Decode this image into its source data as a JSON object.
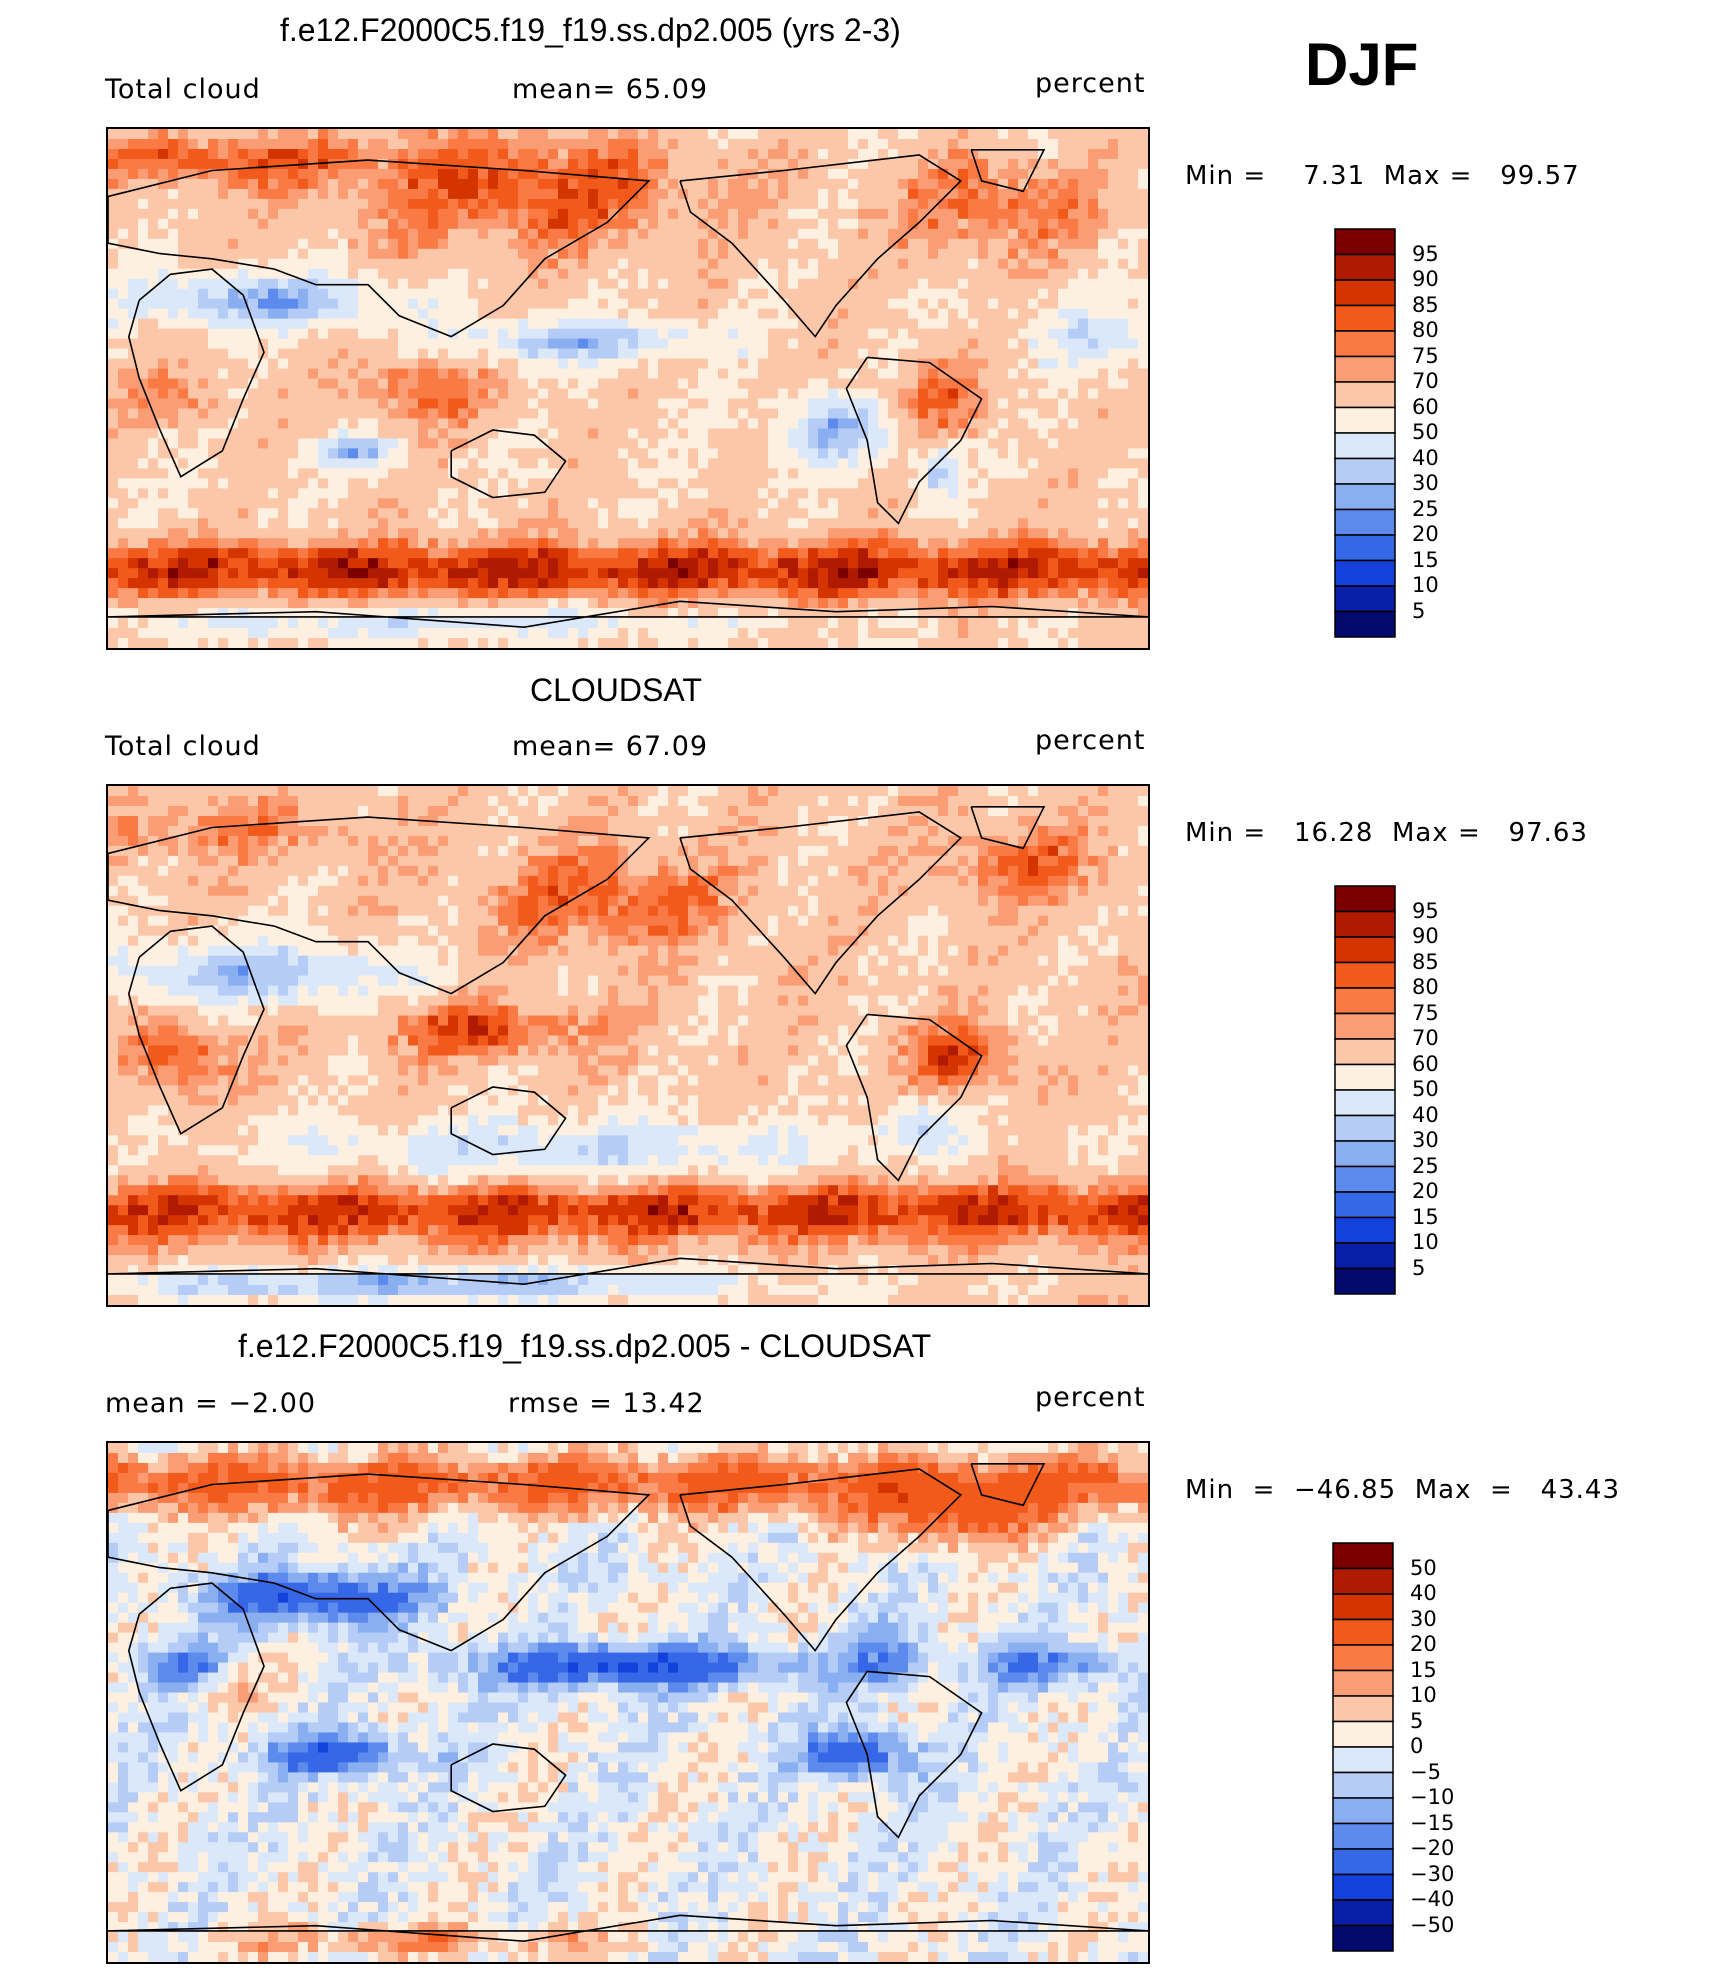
{
  "season": "DJF",
  "panels": [
    {
      "title": "f.e12.F2000C5.f19_f19.ss.dp2.005 (yrs 2-3)",
      "left_label": "Total cloud",
      "mid_label": "mean=   65.09",
      "right_label": "percent",
      "minmax": "Min =    7.31  Max =   99.57",
      "colorbar_levels": [
        "95",
        "90",
        "85",
        "80",
        "75",
        "70",
        "60",
        "50",
        "40",
        "30",
        "25",
        "20",
        "15",
        "10",
        "5"
      ],
      "mean": 65.09,
      "min": 7.31,
      "max": 99.57
    },
    {
      "title": "CLOUDSAT",
      "left_label": "Total cloud",
      "mid_label": "mean=   67.09",
      "right_label": "percent",
      "minmax": "Min =   16.28  Max =   97.63",
      "colorbar_levels": [
        "95",
        "90",
        "85",
        "80",
        "75",
        "70",
        "60",
        "50",
        "40",
        "30",
        "25",
        "20",
        "15",
        "10",
        "5"
      ],
      "mean": 67.09,
      "min": 16.28,
      "max": 97.63
    },
    {
      "title": "f.e12.F2000C5.f19_f19.ss.dp2.005 - CLOUDSAT",
      "left_label": "mean  =   −2.00",
      "mid_label": "rmse  =   13.42",
      "right_label": "percent",
      "minmax": "Min  =  −46.85  Max  =   43.43",
      "colorbar_levels": [
        "50",
        "40",
        "30",
        "20",
        "15",
        "10",
        "5",
        "0",
        "−5",
        "−10",
        "−15",
        "−20",
        "−30",
        "−40",
        "−50"
      ],
      "mean": -2.0,
      "rmse": 13.42,
      "min": -46.85,
      "max": 43.43
    }
  ],
  "chart_data": [
    {
      "type": "heatmap",
      "title": "f.e12.F2000C5.f19_f19.ss.dp2.005 (yrs 2-3)",
      "variable": "Total cloud",
      "units": "percent",
      "mean": 65.09,
      "min": 7.31,
      "max": 99.57,
      "levels": [
        5,
        10,
        15,
        20,
        25,
        30,
        40,
        50,
        60,
        70,
        75,
        80,
        85,
        90,
        95
      ]
    },
    {
      "type": "heatmap",
      "title": "CLOUDSAT",
      "variable": "Total cloud",
      "units": "percent",
      "mean": 67.09,
      "min": 16.28,
      "max": 97.63,
      "levels": [
        5,
        10,
        15,
        20,
        25,
        30,
        40,
        50,
        60,
        70,
        75,
        80,
        85,
        90,
        95
      ]
    },
    {
      "type": "heatmap",
      "title": "f.e12.F2000C5.f19_f19.ss.dp2.005 - CLOUDSAT",
      "units": "percent",
      "mean": -2.0,
      "rmse": 13.42,
      "min": -46.85,
      "max": 43.43,
      "levels": [
        -50,
        -40,
        -30,
        -20,
        -15,
        -10,
        -5,
        0,
        5,
        10,
        15,
        20,
        30,
        40,
        50
      ]
    }
  ],
  "colors": {
    "palette": [
      "#7a0000",
      "#b01a00",
      "#d43400",
      "#f25a1c",
      "#fa7a45",
      "#fb9d74",
      "#fcc7a8",
      "#fef0e0",
      "#dbe8f9",
      "#b5ccf6",
      "#8aaff0",
      "#5d8bed",
      "#3667e6",
      "#1440dc",
      "#0a1fa8",
      "#020a6e"
    ]
  }
}
